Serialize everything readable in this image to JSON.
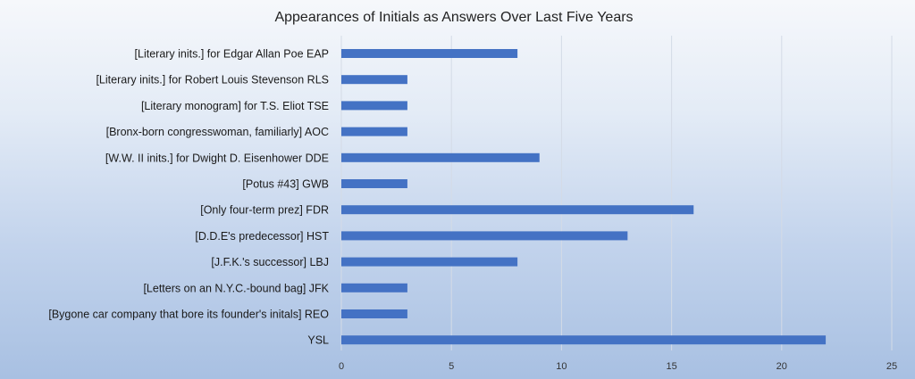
{
  "chart_data": {
    "type": "bar",
    "orientation": "horizontal",
    "title": "Appearances of Initials as Answers Over Last Five Years",
    "xlabel": "",
    "ylabel": "",
    "xlim": [
      0,
      25
    ],
    "x_ticks": [
      0,
      5,
      10,
      15,
      20,
      25
    ],
    "grid": true,
    "bar_color": "#4472c4",
    "categories": [
      "[Literary inits.] for Edgar Allan Poe   EAP",
      "[Literary inits.] for Robert Louis Stevenson   RLS",
      "[Literary monogram] for T.S. Eliot   TSE",
      "[Bronx-born congresswoman, familiarly]   AOC",
      "[W.W. II inits.] for Dwight D. Eisenhower   DDE",
      "[Potus #43]   GWB",
      "[Only four-term prez]   FDR",
      "[D.D.E's predecessor]   HST",
      "[J.F.K.'s successor]   LBJ",
      "[Letters on an N.Y.C.-bound bag]   JFK",
      "[Bygone car company that bore its founder's initals]   REO",
      "YSL"
    ],
    "values": [
      8,
      3,
      3,
      3,
      9,
      3,
      16,
      13,
      8,
      3,
      3,
      22
    ]
  }
}
